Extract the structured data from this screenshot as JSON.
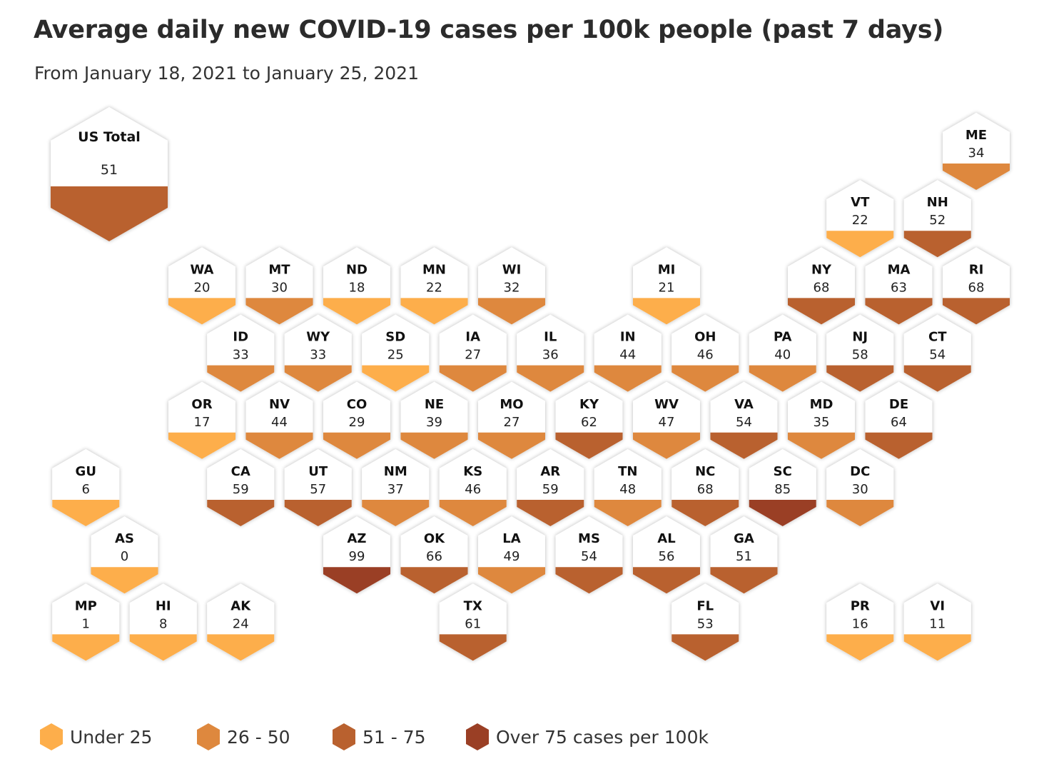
{
  "title": "Average daily new COVID-19 cases per 100k people (past 7 days)",
  "subtitle": "From January 18, 2021 to January 25, 2021",
  "colors": {
    "under_25": "#FDAE4B",
    "26_50": "#DE883E",
    "51_75": "#B9612F",
    "over_75": "#9A3F25"
  },
  "us_total": {
    "label": "US Total",
    "value": 51
  },
  "states": [
    {
      "abbr": "ME",
      "value": 34,
      "row": 0,
      "col": 10
    },
    {
      "abbr": "VT",
      "value": 22,
      "row": 1,
      "col": 8
    },
    {
      "abbr": "NH",
      "value": 52,
      "row": 1,
      "col": 9
    },
    {
      "abbr": "WA",
      "value": 20,
      "row": 2,
      "col": 0
    },
    {
      "abbr": "MT",
      "value": 30,
      "row": 2,
      "col": 1
    },
    {
      "abbr": "ND",
      "value": 18,
      "row": 2,
      "col": 2
    },
    {
      "abbr": "MN",
      "value": 22,
      "row": 2,
      "col": 3
    },
    {
      "abbr": "WI",
      "value": 32,
      "row": 2,
      "col": 4
    },
    {
      "abbr": "MI",
      "value": 21,
      "row": 2,
      "col": 6
    },
    {
      "abbr": "NY",
      "value": 68,
      "row": 2,
      "col": 8
    },
    {
      "abbr": "MA",
      "value": 63,
      "row": 2,
      "col": 9
    },
    {
      "abbr": "RI",
      "value": 68,
      "row": 2,
      "col": 10
    },
    {
      "abbr": "ID",
      "value": 33,
      "row": 3,
      "col": 0
    },
    {
      "abbr": "WY",
      "value": 33,
      "row": 3,
      "col": 1
    },
    {
      "abbr": "SD",
      "value": 25,
      "row": 3,
      "col": 2
    },
    {
      "abbr": "IA",
      "value": 27,
      "row": 3,
      "col": 3
    },
    {
      "abbr": "IL",
      "value": 36,
      "row": 3,
      "col": 4
    },
    {
      "abbr": "IN",
      "value": 44,
      "row": 3,
      "col": 5
    },
    {
      "abbr": "OH",
      "value": 46,
      "row": 3,
      "col": 6
    },
    {
      "abbr": "PA",
      "value": 40,
      "row": 3,
      "col": 7
    },
    {
      "abbr": "NJ",
      "value": 58,
      "row": 3,
      "col": 8
    },
    {
      "abbr": "CT",
      "value": 54,
      "row": 3,
      "col": 9
    },
    {
      "abbr": "OR",
      "value": 17,
      "row": 4,
      "col": 0
    },
    {
      "abbr": "NV",
      "value": 44,
      "row": 4,
      "col": 1
    },
    {
      "abbr": "CO",
      "value": 29,
      "row": 4,
      "col": 2
    },
    {
      "abbr": "NE",
      "value": 39,
      "row": 4,
      "col": 3
    },
    {
      "abbr": "MO",
      "value": 27,
      "row": 4,
      "col": 4
    },
    {
      "abbr": "KY",
      "value": 62,
      "row": 4,
      "col": 5
    },
    {
      "abbr": "WV",
      "value": 47,
      "row": 4,
      "col": 6
    },
    {
      "abbr": "VA",
      "value": 54,
      "row": 4,
      "col": 7
    },
    {
      "abbr": "MD",
      "value": 35,
      "row": 4,
      "col": 8
    },
    {
      "abbr": "DE",
      "value": 64,
      "row": 4,
      "col": 9
    },
    {
      "abbr": "GU",
      "value": 6,
      "row": 5,
      "col": -2
    },
    {
      "abbr": "CA",
      "value": 59,
      "row": 5,
      "col": 0
    },
    {
      "abbr": "UT",
      "value": 57,
      "row": 5,
      "col": 1
    },
    {
      "abbr": "NM",
      "value": 37,
      "row": 5,
      "col": 2
    },
    {
      "abbr": "KS",
      "value": 46,
      "row": 5,
      "col": 3
    },
    {
      "abbr": "AR",
      "value": 59,
      "row": 5,
      "col": 4
    },
    {
      "abbr": "TN",
      "value": 48,
      "row": 5,
      "col": 5
    },
    {
      "abbr": "NC",
      "value": 68,
      "row": 5,
      "col": 6
    },
    {
      "abbr": "SC",
      "value": 85,
      "row": 5,
      "col": 7
    },
    {
      "abbr": "DC",
      "value": 30,
      "row": 5,
      "col": 8
    },
    {
      "abbr": "AS",
      "value": 0,
      "row": 6,
      "col": -1
    },
    {
      "abbr": "AZ",
      "value": 99,
      "row": 6,
      "col": 2
    },
    {
      "abbr": "OK",
      "value": 66,
      "row": 6,
      "col": 3
    },
    {
      "abbr": "LA",
      "value": 49,
      "row": 6,
      "col": 4
    },
    {
      "abbr": "MS",
      "value": 54,
      "row": 6,
      "col": 5
    },
    {
      "abbr": "AL",
      "value": 56,
      "row": 6,
      "col": 6
    },
    {
      "abbr": "GA",
      "value": 51,
      "row": 6,
      "col": 7
    },
    {
      "abbr": "MP",
      "value": 1,
      "row": 7,
      "col": -2
    },
    {
      "abbr": "HI",
      "value": 8,
      "row": 7,
      "col": -1
    },
    {
      "abbr": "AK",
      "value": 24,
      "row": 7,
      "col": 0
    },
    {
      "abbr": "TX",
      "value": 61,
      "row": 7,
      "col": 3
    },
    {
      "abbr": "FL",
      "value": 53,
      "row": 7,
      "col": 6
    },
    {
      "abbr": "PR",
      "value": 16,
      "row": 7,
      "col": 8
    },
    {
      "abbr": "VI",
      "value": 11,
      "row": 7,
      "col": 9
    }
  ],
  "legend": [
    {
      "label": "Under 25",
      "color": "#FDAE4B"
    },
    {
      "label": "26 - 50",
      "color": "#DE883E"
    },
    {
      "label": "51 - 75",
      "color": "#B9612F"
    },
    {
      "label": "Over 75 cases per 100k",
      "color": "#9A3F25"
    }
  ]
}
